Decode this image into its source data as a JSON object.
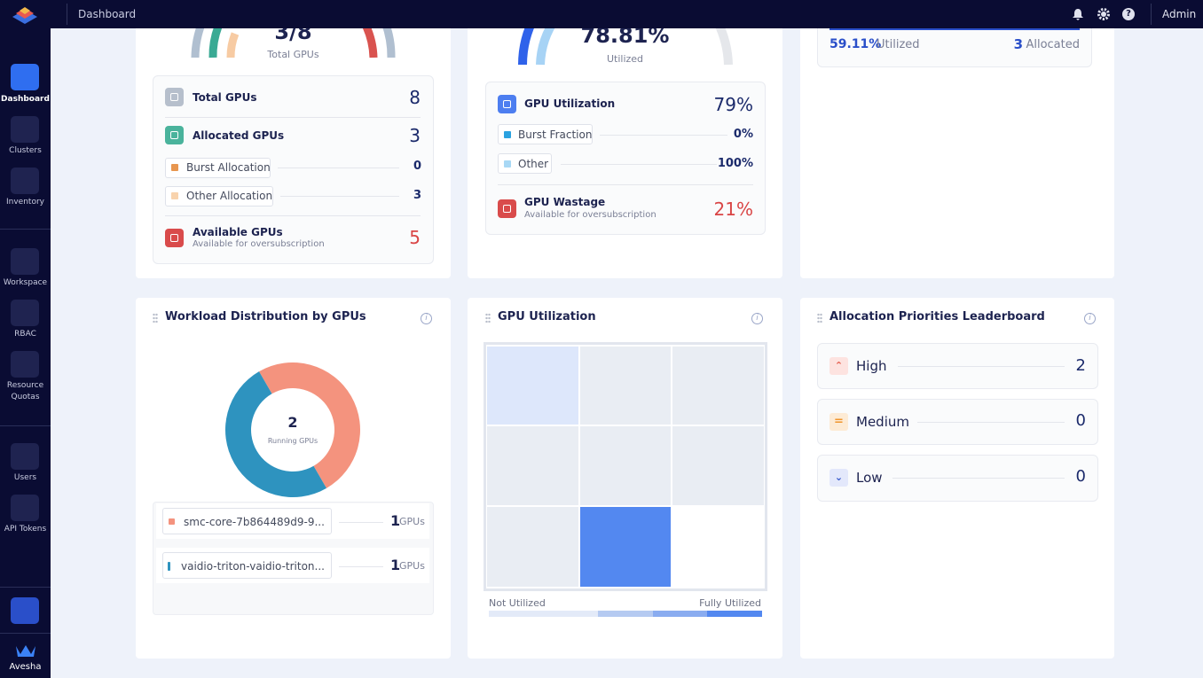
{
  "topbar": {
    "page": "Dashboard",
    "user": "Admin"
  },
  "sidebar": {
    "items": [
      "Dashboard",
      "Clusters",
      "Inventory",
      "Workspace",
      "RBAC",
      "Resource Quotas",
      "Users",
      "API Tokens"
    ],
    "brand": "Avesha"
  },
  "gpu_summary": {
    "gauge_value": "3/8",
    "gauge_label": "Total GPUs",
    "total": {
      "label": "Total GPUs",
      "value": "8"
    },
    "allocated": {
      "label": "Allocated GPUs",
      "value": "3"
    },
    "burst": {
      "label": "Burst Allocation",
      "value": "0"
    },
    "other": {
      "label": "Other Allocation",
      "value": "3"
    },
    "available": {
      "label": "Available GPUs",
      "sublabel": "Available for oversubscription",
      "value": "5"
    }
  },
  "utilization_summary": {
    "gauge_value": "78.81%",
    "gauge_label": "Utilized",
    "utilization": {
      "label": "GPU Utilization",
      "value": "79%"
    },
    "burst": {
      "label": "Burst Fraction",
      "value": "0%"
    },
    "other": {
      "label": "Other",
      "value": "100%"
    },
    "wastage": {
      "label": "GPU Wastage",
      "sublabel": "Available for oversubscription",
      "value": "21%"
    }
  },
  "allocation_summary": {
    "utilized_value": "59.11%",
    "utilized_label": "Utilized",
    "allocated_value": "3",
    "allocated_label": "Allocated"
  },
  "chart_data": {
    "type": "donut",
    "title": "Workload Distribution by GPUs",
    "total": 2,
    "total_label": "Running GPUs",
    "unit": "GPUs",
    "series": [
      {
        "name": "smc-core-7b864489d9-9...",
        "value": 1,
        "color": "#f4937e"
      },
      {
        "name": "vaidio-triton-vaidio-triton...",
        "value": 1,
        "color": "#2e93bf"
      }
    ]
  },
  "heatmap": {
    "title": "GPU Utilization",
    "low_label": "Not Utilized",
    "high_label": "Fully Utilized"
  },
  "leaderboard": {
    "title": "Allocation Priorities Leaderboard",
    "rows": [
      {
        "label": "High",
        "value": "2"
      },
      {
        "label": "Medium",
        "value": "0"
      },
      {
        "label": "Low",
        "value": "0"
      }
    ]
  }
}
